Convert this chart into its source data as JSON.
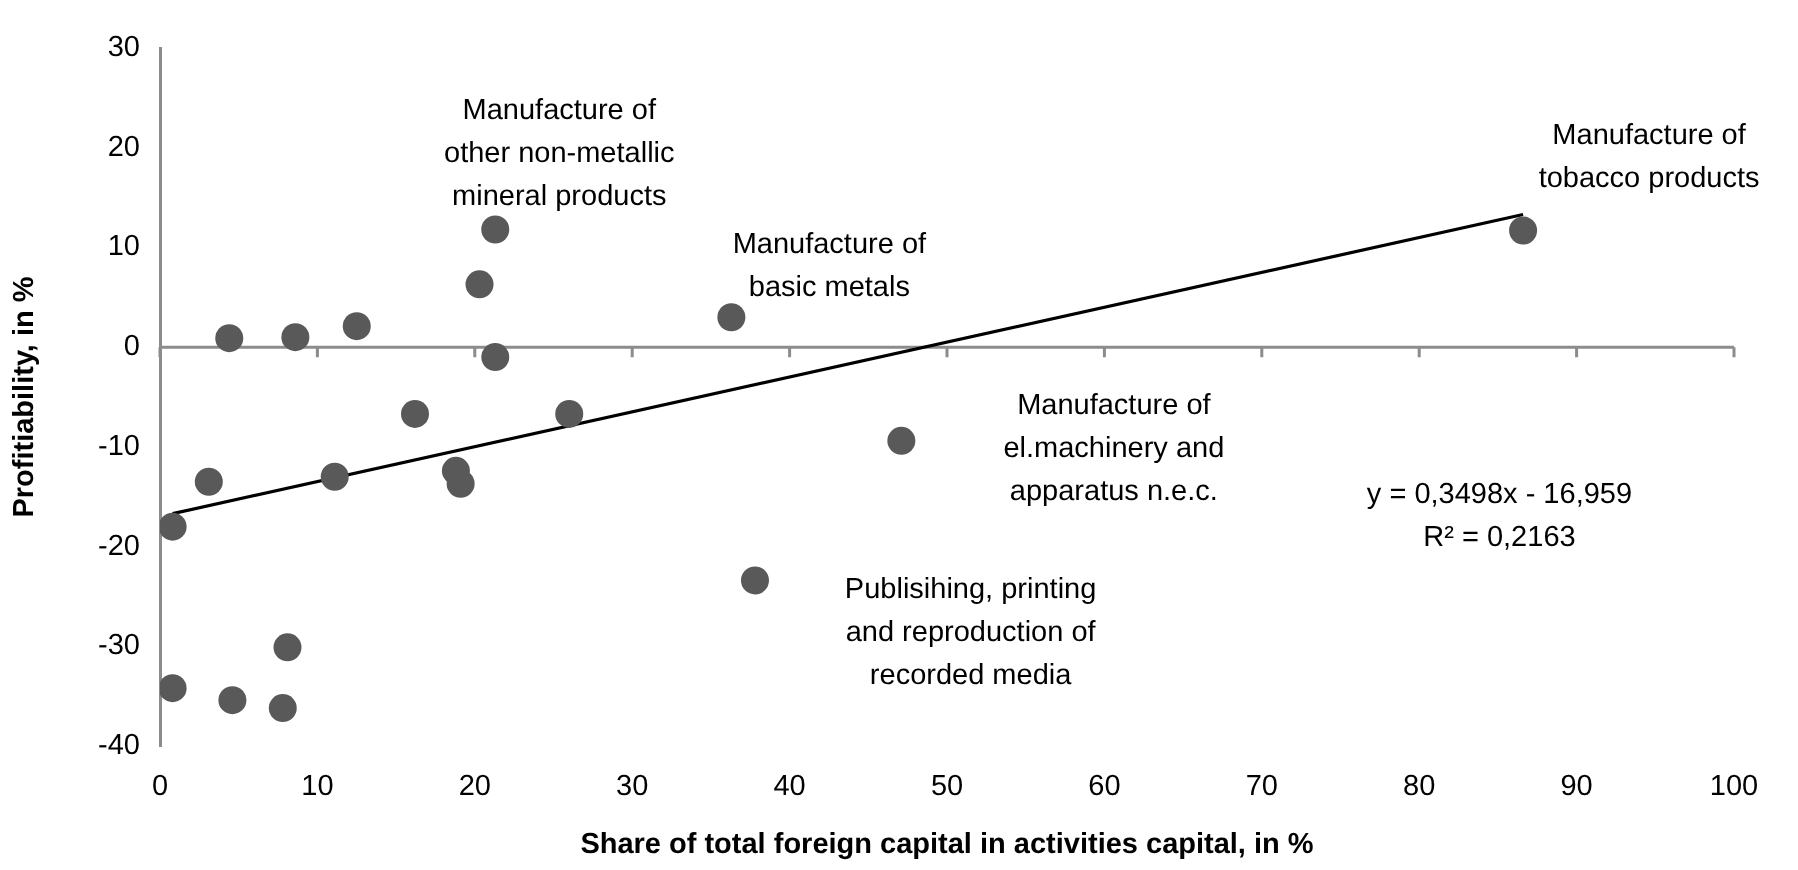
{
  "chart_data": {
    "type": "scatter",
    "xlabel": "Share of total foreign capital in activities capital, in %",
    "ylabel": "Profitiability, in %",
    "xlim": [
      0,
      100
    ],
    "xticks": [
      0,
      10,
      20,
      30,
      40,
      50,
      60,
      70,
      80,
      90,
      100
    ],
    "ylim": [
      -40,
      30
    ],
    "yticks": [
      -40,
      -30,
      -20,
      -10,
      0,
      10,
      20,
      30
    ],
    "marker": "circle",
    "series": [
      {
        "type": "scatter",
        "color": "#595959",
        "x": [
          0.8,
          3.1,
          4.4,
          8.6,
          12.5,
          16.2,
          11.1,
          18.8,
          19.1,
          20.3,
          21.3,
          21.3,
          26.0,
          36.3,
          37.8,
          0.8,
          4.6,
          7.8,
          8.1,
          47.1,
          86.6
        ],
        "values": [
          -18.0,
          -13.5,
          0.9,
          1.0,
          2.1,
          -6.7,
          -13.0,
          -12.4,
          -13.7,
          6.3,
          11.8,
          -1.0,
          -6.7,
          3.0,
          -23.4,
          -34.2,
          -35.4,
          -36.2,
          -30.1,
          -9.4,
          11.7
        ]
      },
      {
        "type": "line",
        "color": "#000000",
        "marker": "none",
        "x": [
          0.8,
          86.6
        ],
        "values": [
          -16.7,
          13.3
        ]
      }
    ],
    "annotations": [
      {
        "text": "Manufacture of\nother non-metallic\nmineral products",
        "x": 21.3,
        "y": 11.8
      },
      {
        "text": "Manufacture of\nbasic metals",
        "x": 36.3,
        "y": 3.0
      },
      {
        "text": "Manufacture of\ntobacco products",
        "x": 86.6,
        "y": 11.7
      },
      "Manufacture of\nel.machinery and\napparatus n.e.c.",
      "Publisihing, printing\nand reproduction of\nrecorded media",
      "y = 0,3498x - 16,959\nR² = 0,2163"
    ]
  }
}
